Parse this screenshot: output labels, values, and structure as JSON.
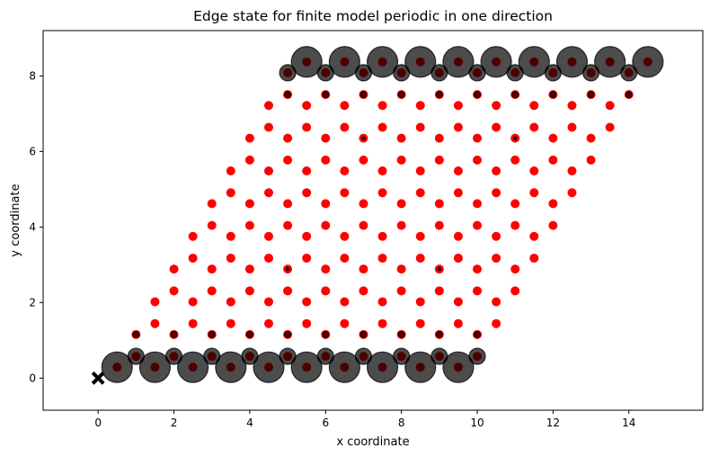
{
  "chart_data": {
    "type": "scatter",
    "title": "Edge state for finite model periodic in one direction",
    "xlabel": "x coordinate",
    "ylabel": "y coordinate",
    "xlim": [
      -1.45,
      15.95
    ],
    "ylim": [
      -0.85,
      9.2
    ],
    "xticks": [
      0,
      2,
      4,
      6,
      8,
      10,
      12,
      14
    ],
    "yticks": [
      0,
      2,
      4,
      6,
      8
    ],
    "grid": false,
    "lattice": {
      "a1": [
        1.0,
        0.0
      ],
      "a2": [
        0.5,
        0.8660254
      ],
      "orbital_offsets": [
        [
          0.5,
          0.2886751
        ],
        [
          1.0,
          0.5773503
        ]
      ],
      "n1": 10,
      "n2": 10
    },
    "colors": {
      "sites": "#ff0000",
      "weight_marker": "#000000",
      "origin_marker": "#000000"
    },
    "edge_state_weights": {
      "bottom_row_orbital0": 1.0,
      "bottom_row_orbital1": 0.28,
      "row1_orbital0": 0.04,
      "top_row_orbital1": 1.0,
      "top_row_orbital0": 0.28,
      "row8_orbital1": 0.04,
      "interior_scattered": 0.01
    },
    "origin_marker": [
      0,
      0
    ],
    "legend": "none"
  }
}
